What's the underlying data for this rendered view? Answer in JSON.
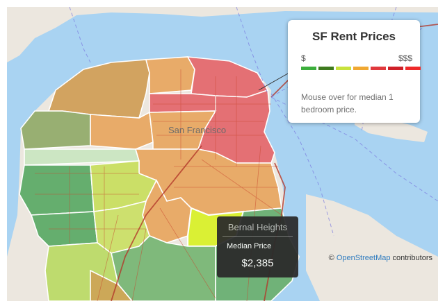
{
  "map": {
    "city_label": "San Francisco",
    "colors": {
      "water": "#a9d3f2",
      "land": "#ece7df",
      "outline": "#ffffff",
      "road": "#c8452d",
      "transit": "#6a6ad8"
    }
  },
  "legend": {
    "title": "SF Rent Prices",
    "low_label": "$",
    "high_label": "$$$",
    "swatches": [
      "#3cae3c",
      "#3e7a1e",
      "#c8e23c",
      "#f0a832",
      "#e0393c",
      "#cf2028",
      "#ef2a2a"
    ],
    "hint": "Mouse over for median 1 bedroom price."
  },
  "tooltip": {
    "neighborhood": "Bernal Heights",
    "label": "Median Price",
    "value": "$2,385"
  },
  "attribution": {
    "symbol": "©",
    "link": "OpenStreetMap",
    "suffix": " contributors"
  }
}
